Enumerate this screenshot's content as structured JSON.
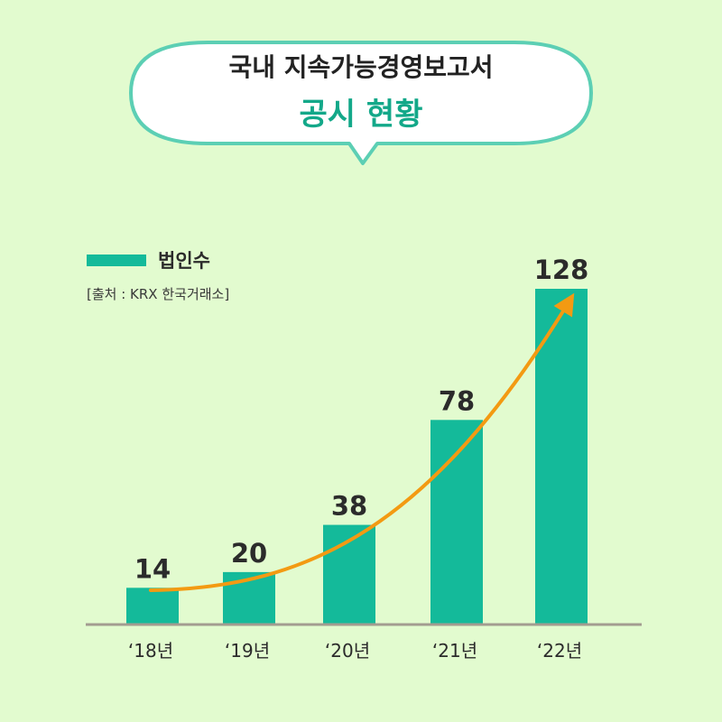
{
  "header": {
    "line1": "국내 지속가능경영보고서",
    "line2": "공시 현황"
  },
  "legend": {
    "label": "법인수"
  },
  "source": "[출처 : KRX 한국거래소]",
  "colors": {
    "background": "#e2fbcf",
    "bar": "#14ba9a",
    "bubble_border": "#5ccfb4",
    "title_accent": "#13a889",
    "trend_arrow": "#f39a12",
    "axis": "#a39c90"
  },
  "chart_data": {
    "type": "bar",
    "categories": [
      "‘18년",
      "‘19년",
      "‘20년",
      "‘21년",
      "‘22년"
    ],
    "series": [
      {
        "name": "법인수",
        "values": [
          14,
          20,
          38,
          78,
          128
        ]
      }
    ],
    "data_labels": [
      "14",
      "20",
      "38",
      "78",
      "128"
    ],
    "trend_arrow": true,
    "ylim": [
      0,
      128
    ],
    "grid": false,
    "legend_position": "top-left"
  }
}
